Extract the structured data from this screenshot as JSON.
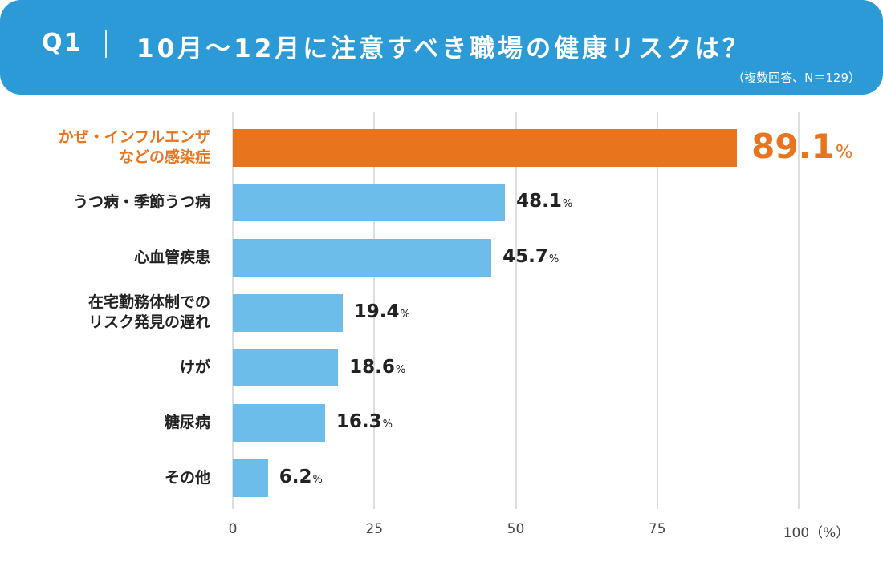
{
  "header": {
    "question_label": "Q1",
    "title": "10月～12月に注意すべき職場の健康リスクは？",
    "note": "（複数回答、N＝129）"
  },
  "colors": {
    "header_bg": "#2b9ad6",
    "highlight": "#e8741d",
    "bar": "#6cbde9",
    "grid": "#dedede",
    "text": "#222222"
  },
  "chart_data": {
    "type": "bar",
    "orientation": "horizontal",
    "title": "10月～12月に注意すべき職場の健康リスクは？",
    "xlabel": "",
    "ylabel": "",
    "xlim": [
      0,
      100
    ],
    "x_ticks": [
      "0",
      "25",
      "50",
      "75",
      "100（%）"
    ],
    "grid": true,
    "unit": "%",
    "highlight_index": 0,
    "categories": [
      "かぜ・インフルエンザ\nなどの感染症",
      "うつ病・季節うつ病",
      "心血管疾患",
      "在宅勤務体制での\nリスク発見の遅れ",
      "けが",
      "糖尿病",
      "その他"
    ],
    "values": [
      89.1,
      48.1,
      45.7,
      19.4,
      18.6,
      16.3,
      6.2
    ]
  }
}
